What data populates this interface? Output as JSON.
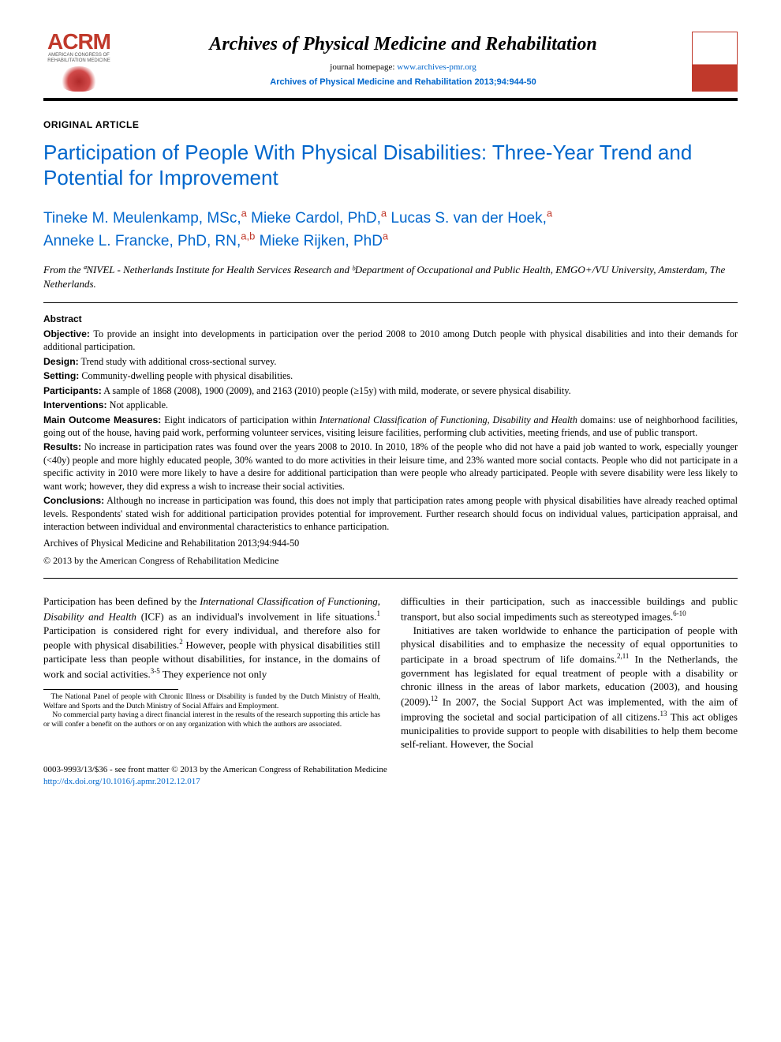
{
  "header": {
    "logo_text": "ACRM",
    "logo_sub": "AMERICAN CONGRESS OF REHABILITATION MEDICINE",
    "journal_name": "Archives of Physical Medicine and Rehabilitation",
    "homepage_label": "journal homepage: ",
    "homepage_url": "www.archives-pmr.org",
    "journal_cite": "Archives of Physical Medicine and Rehabilitation 2013;94:944-50"
  },
  "article": {
    "type": "ORIGINAL ARTICLE",
    "title": "Participation of People With Physical Disabilities: Three-Year Trend and Potential for Improvement"
  },
  "authors": [
    {
      "name": "Tineke M. Meulenkamp, MSc,",
      "aff": "a"
    },
    {
      "name": "Mieke Cardol, PhD,",
      "aff": "a"
    },
    {
      "name": "Lucas S. van der Hoek,",
      "aff": "a"
    },
    {
      "name": "Anneke L. Francke, PhD, RN,",
      "aff": "a,b"
    },
    {
      "name": "Mieke Rijken, PhD",
      "aff": "a"
    }
  ],
  "affiliations": "From the ªNIVEL - Netherlands Institute for Health Services Research and ᵇDepartment of Occupational and Public Health, EMGO+/VU University, Amsterdam, The Netherlands.",
  "abstract": {
    "heading": "Abstract",
    "items": [
      {
        "label": "Objective:",
        "text": "To provide an insight into developments in participation over the period 2008 to 2010 among Dutch people with physical disabilities and into their demands for additional participation."
      },
      {
        "label": "Design:",
        "text": "Trend study with additional cross-sectional survey."
      },
      {
        "label": "Setting:",
        "text": "Community-dwelling people with physical disabilities."
      },
      {
        "label": "Participants:",
        "text": "A sample of 1868 (2008), 1900 (2009), and 2163 (2010) people (≥15y) with mild, moderate, or severe physical disability."
      },
      {
        "label": "Interventions:",
        "text": "Not applicable."
      },
      {
        "label": "Main Outcome Measures:",
        "text": "Eight indicators of participation within International Classification of Functioning, Disability and Health domains: use of neighborhood facilities, going out of the house, having paid work, performing volunteer services, visiting leisure facilities, performing club activities, meeting friends, and use of public transport."
      },
      {
        "label": "Results:",
        "text": "No increase in participation rates was found over the years 2008 to 2010. In 2010, 18% of the people who did not have a paid job wanted to work, especially younger (<40y) people and more highly educated people, 30% wanted to do more activities in their leisure time, and 23% wanted more social contacts. People who did not participate in a specific activity in 2010 were more likely to have a desire for additional participation than were people who already participated. People with severe disability were less likely to want work; however, they did express a wish to increase their social activities."
      },
      {
        "label": "Conclusions:",
        "text": "Although no increase in participation was found, this does not imply that participation rates among people with physical disabilities have already reached optimal levels. Respondents' stated wish for additional participation provides potential for improvement. Further research should focus on individual values, participation appraisal, and interaction between individual and environmental characteristics to enhance participation."
      }
    ],
    "cite": "Archives of Physical Medicine and Rehabilitation 2013;94:944-50",
    "copyright": "© 2013 by the American Congress of Rehabilitation Medicine"
  },
  "body": {
    "p1": "Participation has been defined by the International Classification of Functioning, Disability and Health (ICF) as an individual's involvement in life situations.¹ Participation is considered right for every individual, and therefore also for people with physical disabilities.² However, people with physical disabilities still participate less than people without disabilities, for instance, in the domains of work and social activities.³⁻⁵ They experience not only",
    "p2": "difficulties in their participation, such as inaccessible buildings and public transport, but also social impediments such as stereotyped images.⁶⁻¹⁰",
    "p3": "Initiatives are taken worldwide to enhance the participation of people with physical disabilities and to emphasize the necessity of equal opportunities to participate in a broad spectrum of life domains.²,¹¹ In the Netherlands, the government has legislated for equal treatment of people with a disability or chronic illness in the areas of labor markets, education (2003), and housing (2009).¹² In 2007, the Social Support Act was implemented, with the aim of improving the societal and social participation of all citizens.¹³ This act obliges municipalities to provide support to people with disabilities to help them become self-reliant. However, the Social"
  },
  "footnotes": {
    "f1": "The National Panel of people with Chronic Illness or Disability is funded by the Dutch Ministry of Health, Welfare and Sports and the Dutch Ministry of Social Affairs and Employment.",
    "f2": "No commercial party having a direct financial interest in the results of the research supporting this article has or will confer a benefit on the authors or on any organization with which the authors are associated."
  },
  "bottom": {
    "line1": "0003-9993/13/$36 - see front matter © 2013 by the American Congress of Rehabilitation Medicine",
    "doi": "http://dx.doi.org/10.1016/j.apmr.2012.12.017"
  },
  "colors": {
    "link": "#0066cc",
    "brand_red": "#c0392b"
  }
}
